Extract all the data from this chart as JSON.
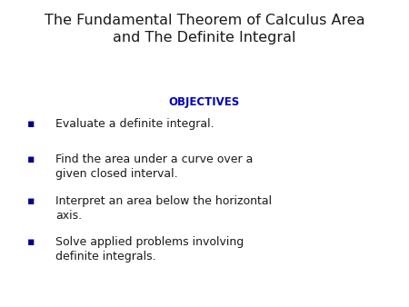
{
  "title_line1": "The Fundamental Theorem of Calculus Area",
  "title_line2": "and The Definite Integral",
  "title_color": "#1a1a1a",
  "title_fontsize": 11.5,
  "objectives_label": "OBJECTIVES",
  "objectives_color": "#0000BB",
  "objectives_fontsize": 8.5,
  "bullet_color": "#00008B",
  "bullet_text_color": "#1a1a1a",
  "bullet_fontsize": 9.0,
  "bullets": [
    "Evaluate a definite integral.",
    "Find the area under a curve over a\ngiven closed interval.",
    "Interpret an area below the horizontal\naxis.",
    "Solve applied problems involving\ndefinite integrals."
  ],
  "background_color": "#ffffff",
  "fig_width": 4.5,
  "fig_height": 3.38,
  "dpi": 100
}
